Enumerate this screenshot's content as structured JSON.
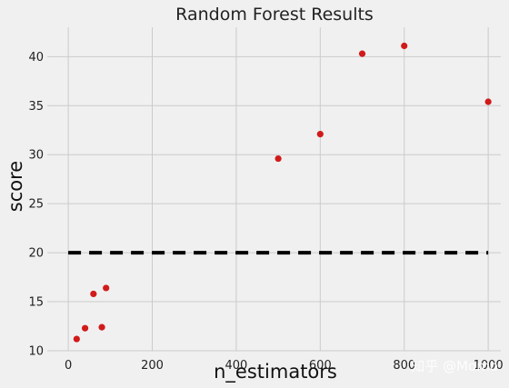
{
  "chart_data": {
    "type": "scatter",
    "title": "Random Forest Results",
    "xlabel": "n_estimators",
    "ylabel": "score",
    "xlim": [
      -50,
      1030
    ],
    "ylim": [
      10,
      43
    ],
    "xticks": [
      0,
      200,
      400,
      600,
      800,
      1000
    ],
    "yticks": [
      10,
      15,
      20,
      25,
      30,
      35,
      40
    ],
    "grid": true,
    "series": [
      {
        "x": [
          20,
          40,
          60,
          80,
          90,
          500,
          600,
          700,
          800,
          1000
        ],
        "y": [
          11.2,
          12.3,
          15.8,
          12.4,
          16.4,
          29.6,
          32.1,
          40.3,
          41.1,
          35.4
        ],
        "color": "#d11a1a"
      }
    ],
    "reference_line": {
      "y": 20,
      "x_start": 0,
      "x_end": 1000,
      "style": "dashed",
      "color": "#000000"
    }
  },
  "watermark": "知乎 @Momo"
}
